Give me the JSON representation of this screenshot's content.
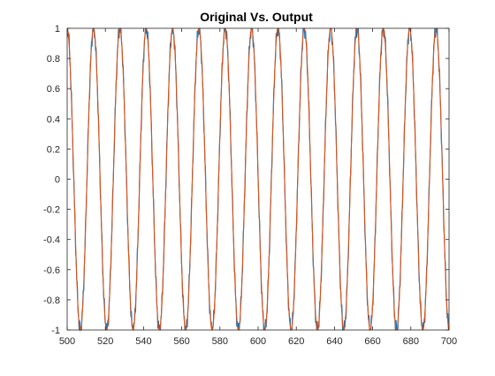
{
  "chart_data": {
    "type": "line",
    "title": "Original Vs. Output",
    "xlabel": "",
    "ylabel": "",
    "xlim": [
      500,
      700
    ],
    "ylim": [
      -1,
      1
    ],
    "x_ticks": [
      500,
      520,
      540,
      560,
      580,
      600,
      620,
      640,
      660,
      680,
      700
    ],
    "y_ticks": [
      1,
      0.8,
      0.6,
      0.4,
      0.2,
      0,
      -0.2,
      -0.4,
      -0.6,
      -0.8,
      -1
    ],
    "grid": false,
    "series": [
      {
        "name": "",
        "color": "#0072BD",
        "function": "cos",
        "amplitude": 1,
        "period": 13.8,
        "phase_origin_x": 500,
        "noise": 0.06
      },
      {
        "name": "",
        "color": "#D95319",
        "function": "cos",
        "amplitude": 1,
        "period": 13.8,
        "phase_origin_x": 500
      }
    ]
  }
}
